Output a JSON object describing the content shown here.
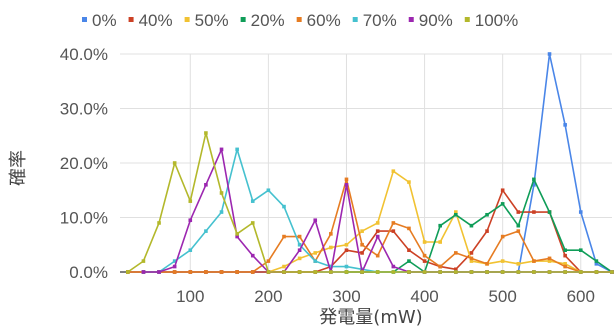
{
  "chart_data": {
    "type": "line",
    "title": "",
    "xlabel": "発電量(mW)",
    "ylabel": "確率",
    "xlim": [
      10,
      640
    ],
    "ylim": [
      0,
      40
    ],
    "x_ticks": [
      100,
      200,
      300,
      400,
      500,
      600
    ],
    "x_tick_labels": [
      "100",
      "200",
      "300",
      "400",
      "500",
      "600"
    ],
    "y_ticks": [
      0,
      10,
      20,
      30,
      40
    ],
    "y_tick_labels": [
      "0.0%",
      "10.0%",
      "20.0%",
      "30.0%",
      "40.0%"
    ],
    "grid": true,
    "legend_position": "top",
    "series": [
      {
        "name": "0%",
        "color": "#4a86e8",
        "points": [
          [
            20,
            0
          ],
          [
            40,
            0
          ],
          [
            60,
            0
          ],
          [
            80,
            0
          ],
          [
            100,
            0
          ],
          [
            120,
            0
          ],
          [
            140,
            0
          ],
          [
            160,
            0
          ],
          [
            180,
            0
          ],
          [
            200,
            0
          ],
          [
            220,
            0
          ],
          [
            240,
            0
          ],
          [
            260,
            0
          ],
          [
            280,
            0
          ],
          [
            300,
            0
          ],
          [
            320,
            0
          ],
          [
            340,
            0
          ],
          [
            360,
            0
          ],
          [
            380,
            0
          ],
          [
            400,
            0
          ],
          [
            420,
            0
          ],
          [
            440,
            0
          ],
          [
            460,
            0
          ],
          [
            480,
            0
          ],
          [
            500,
            0
          ],
          [
            520,
            0
          ],
          [
            540,
            16
          ],
          [
            560,
            40
          ],
          [
            580,
            27
          ],
          [
            600,
            11
          ],
          [
            620,
            1.5
          ],
          [
            640,
            0
          ]
        ]
      },
      {
        "name": "40%",
        "color": "#cc4125",
        "points": [
          [
            20,
            0
          ],
          [
            40,
            0
          ],
          [
            60,
            0
          ],
          [
            80,
            0
          ],
          [
            100,
            0
          ],
          [
            120,
            0
          ],
          [
            140,
            0
          ],
          [
            160,
            0
          ],
          [
            180,
            0
          ],
          [
            200,
            0
          ],
          [
            220,
            0
          ],
          [
            240,
            0
          ],
          [
            260,
            0
          ],
          [
            280,
            1
          ],
          [
            300,
            4
          ],
          [
            320,
            3.5
          ],
          [
            340,
            7.5
          ],
          [
            360,
            7.5
          ],
          [
            380,
            4
          ],
          [
            400,
            2
          ],
          [
            420,
            1
          ],
          [
            440,
            0.5
          ],
          [
            460,
            3.5
          ],
          [
            480,
            7.5
          ],
          [
            500,
            15
          ],
          [
            520,
            11
          ],
          [
            540,
            11
          ],
          [
            560,
            11
          ],
          [
            580,
            3
          ],
          [
            600,
            0
          ],
          [
            620,
            0
          ],
          [
            640,
            0
          ]
        ]
      },
      {
        "name": "50%",
        "color": "#f1c232",
        "points": [
          [
            200,
            0
          ],
          [
            220,
            1
          ],
          [
            240,
            2.5
          ],
          [
            260,
            3.5
          ],
          [
            280,
            4.5
          ],
          [
            300,
            5
          ],
          [
            320,
            7.5
          ],
          [
            340,
            9
          ],
          [
            360,
            18.5
          ],
          [
            380,
            16.5
          ],
          [
            400,
            5.5
          ],
          [
            420,
            5.5
          ],
          [
            440,
            11
          ],
          [
            460,
            2
          ],
          [
            480,
            1.5
          ],
          [
            500,
            2
          ],
          [
            520,
            1.5
          ],
          [
            540,
            2
          ],
          [
            560,
            2
          ],
          [
            580,
            1.5
          ],
          [
            600,
            0
          ],
          [
            620,
            0
          ],
          [
            640,
            0
          ]
        ]
      },
      {
        "name": "20%",
        "color": "#0f9d58",
        "points": [
          [
            300,
            0
          ],
          [
            320,
            0
          ],
          [
            340,
            0
          ],
          [
            360,
            0
          ],
          [
            380,
            2
          ],
          [
            400,
            0
          ],
          [
            420,
            8.5
          ],
          [
            440,
            10.5
          ],
          [
            460,
            8.5
          ],
          [
            480,
            10.5
          ],
          [
            500,
            12.5
          ],
          [
            520,
            8.5
          ],
          [
            540,
            17
          ],
          [
            560,
            11
          ],
          [
            580,
            4
          ],
          [
            600,
            4
          ],
          [
            620,
            2
          ],
          [
            640,
            0
          ]
        ]
      },
      {
        "name": "60%",
        "color": "#e67c22",
        "points": [
          [
            20,
            0
          ],
          [
            40,
            0
          ],
          [
            60,
            0
          ],
          [
            80,
            0
          ],
          [
            100,
            0
          ],
          [
            120,
            0
          ],
          [
            140,
            0
          ],
          [
            160,
            0
          ],
          [
            180,
            0
          ],
          [
            200,
            2
          ],
          [
            220,
            6.5
          ],
          [
            240,
            6.5
          ],
          [
            260,
            2
          ],
          [
            280,
            7
          ],
          [
            300,
            17
          ],
          [
            320,
            5
          ],
          [
            340,
            3
          ],
          [
            360,
            9
          ],
          [
            380,
            8
          ],
          [
            400,
            3
          ],
          [
            420,
            1
          ],
          [
            440,
            3.5
          ],
          [
            460,
            2.5
          ],
          [
            480,
            1.5
          ],
          [
            500,
            6.5
          ],
          [
            520,
            7.5
          ],
          [
            540,
            2
          ],
          [
            560,
            2.5
          ],
          [
            580,
            1
          ],
          [
            600,
            0
          ],
          [
            620,
            0
          ],
          [
            640,
            0
          ]
        ]
      },
      {
        "name": "70%",
        "color": "#45c1cf",
        "points": [
          [
            40,
            0
          ],
          [
            60,
            0
          ],
          [
            80,
            2
          ],
          [
            100,
            4
          ],
          [
            120,
            7.5
          ],
          [
            140,
            11
          ],
          [
            160,
            22.5
          ],
          [
            180,
            13
          ],
          [
            200,
            15
          ],
          [
            220,
            12
          ],
          [
            240,
            5
          ],
          [
            260,
            2
          ],
          [
            280,
            1
          ],
          [
            300,
            1
          ],
          [
            320,
            0.5
          ],
          [
            340,
            0
          ],
          [
            360,
            0
          ],
          [
            380,
            0
          ],
          [
            400,
            0
          ],
          [
            420,
            0
          ],
          [
            440,
            0
          ],
          [
            460,
            0
          ],
          [
            480,
            0
          ],
          [
            500,
            0
          ],
          [
            520,
            0
          ],
          [
            540,
            0
          ],
          [
            560,
            0
          ],
          [
            580,
            0
          ],
          [
            600,
            0
          ],
          [
            620,
            0
          ],
          [
            640,
            0
          ]
        ]
      },
      {
        "name": "90%",
        "color": "#9c27b0",
        "points": [
          [
            40,
            0
          ],
          [
            60,
            0
          ],
          [
            80,
            1
          ],
          [
            100,
            9.5
          ],
          [
            120,
            16
          ],
          [
            140,
            22.5
          ],
          [
            160,
            6.5
          ],
          [
            180,
            3
          ],
          [
            200,
            0
          ],
          [
            220,
            0
          ],
          [
            240,
            4
          ],
          [
            260,
            9.5
          ],
          [
            280,
            0
          ],
          [
            300,
            16
          ],
          [
            320,
            0
          ],
          [
            340,
            6.5
          ],
          [
            360,
            1
          ],
          [
            380,
            0
          ],
          [
            400,
            0
          ],
          [
            420,
            0
          ],
          [
            440,
            0
          ],
          [
            460,
            0
          ],
          [
            480,
            0
          ],
          [
            500,
            0
          ],
          [
            520,
            0
          ],
          [
            540,
            0
          ],
          [
            560,
            0
          ],
          [
            580,
            0
          ],
          [
            600,
            0
          ],
          [
            620,
            0
          ],
          [
            640,
            0
          ]
        ]
      },
      {
        "name": "100%",
        "color": "#b3b82b",
        "points": [
          [
            20,
            0
          ],
          [
            40,
            2
          ],
          [
            60,
            9
          ],
          [
            80,
            20
          ],
          [
            100,
            13
          ],
          [
            120,
            25.5
          ],
          [
            140,
            14.5
          ],
          [
            160,
            7
          ],
          [
            180,
            9
          ],
          [
            200,
            0
          ],
          [
            220,
            0
          ],
          [
            240,
            0
          ],
          [
            260,
            0
          ],
          [
            280,
            0
          ],
          [
            300,
            0
          ],
          [
            320,
            0
          ],
          [
            340,
            0
          ],
          [
            360,
            0
          ],
          [
            380,
            0
          ],
          [
            400,
            0
          ],
          [
            420,
            0
          ],
          [
            440,
            0
          ],
          [
            460,
            0
          ],
          [
            480,
            0
          ],
          [
            500,
            0
          ],
          [
            520,
            0
          ],
          [
            540,
            0
          ],
          [
            560,
            0
          ],
          [
            580,
            0
          ],
          [
            600,
            0
          ],
          [
            620,
            0
          ],
          [
            640,
            0
          ]
        ]
      }
    ]
  }
}
